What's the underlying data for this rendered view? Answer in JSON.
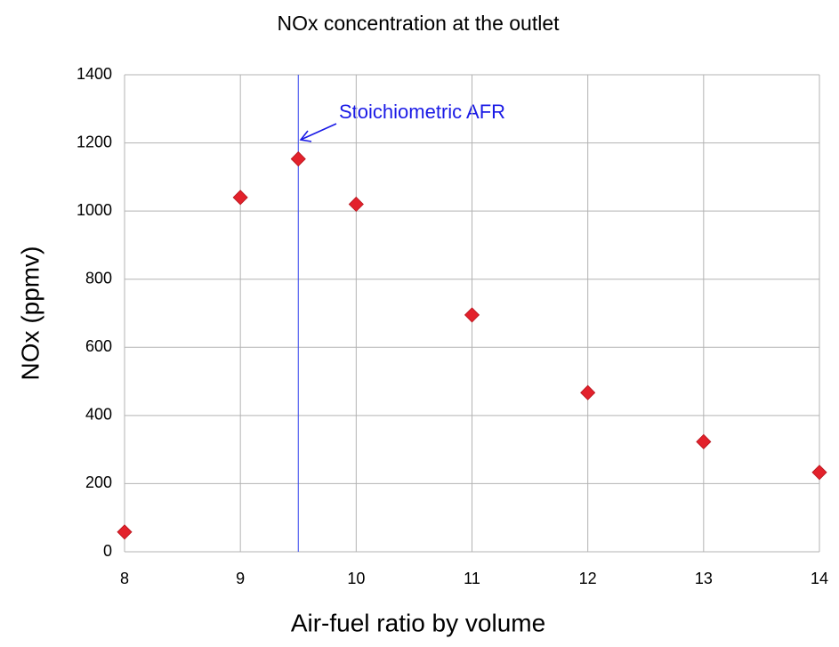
{
  "chart_data": {
    "type": "scatter",
    "title": "NOx concentration at the outlet",
    "x_label": "Air-fuel ratio by volume",
    "y_label": "NOx (ppmv)",
    "x": [
      8,
      9,
      9.5,
      10,
      11,
      12,
      13,
      14
    ],
    "values": [
      58,
      1040,
      1153,
      1020,
      695,
      467,
      323,
      233
    ],
    "color": "#e3212b",
    "xlim": [
      8,
      14
    ],
    "ylim": [
      0,
      1400
    ],
    "xticks": [
      8,
      9,
      10,
      11,
      12,
      13,
      14
    ],
    "yticks": [
      0,
      200,
      400,
      600,
      800,
      1000,
      1200,
      1400
    ],
    "grid": true,
    "reference_line_x": 9.5,
    "reference_line_color": "#3344ee",
    "annotation": "Stoichiometric  AFR"
  }
}
